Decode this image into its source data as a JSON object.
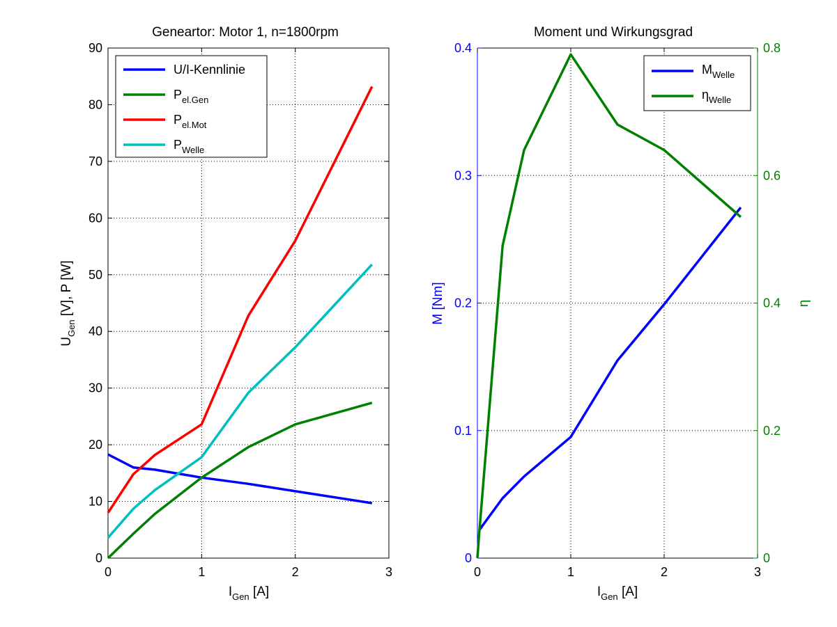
{
  "chart_data": [
    {
      "type": "line",
      "title": "Geneartor: Motor 1, n=1800rpm",
      "xlabel": {
        "main": "I",
        "sub": "Gen",
        "rest": " [A]"
      },
      "ylabel": {
        "main": "U",
        "sub": "Gen",
        "rest": " [V], P [W]"
      },
      "xlim": [
        0,
        3
      ],
      "ylim": [
        0,
        90
      ],
      "xticks": [
        0,
        1,
        2,
        3
      ],
      "yticks": [
        0,
        10,
        20,
        30,
        40,
        50,
        60,
        70,
        80,
        90
      ],
      "grid": true,
      "legend_position": "top-left",
      "series": [
        {
          "name": "U/I-Kennlinie",
          "name_main": "U/I-Kennlinie",
          "name_sub": "",
          "color": "#0000ff",
          "x": [
            0,
            0.27,
            0.5,
            1.0,
            1.5,
            2.0,
            2.82
          ],
          "y": [
            18.3,
            16.0,
            15.6,
            14.2,
            13.1,
            11.8,
            9.7
          ]
        },
        {
          "name": "Pel.Gen",
          "name_main": "P",
          "name_sub": "el.Gen",
          "color": "#008000",
          "x": [
            0,
            0.27,
            0.5,
            1.0,
            1.5,
            2.0,
            2.82
          ],
          "y": [
            0,
            4.3,
            7.8,
            14.2,
            19.6,
            23.6,
            27.4
          ]
        },
        {
          "name": "Pel.Mot",
          "name_main": "P",
          "name_sub": "el.Mot",
          "color": "#ff0000",
          "x": [
            0,
            0.27,
            0.5,
            1.0,
            1.5,
            2.0,
            2.82
          ],
          "y": [
            8.0,
            14.8,
            18.2,
            23.6,
            42.8,
            56.0,
            83.2
          ]
        },
        {
          "name": "PWelle",
          "name_main": "P",
          "name_sub": "Welle",
          "color": "#00bfbf",
          "x": [
            0,
            0.27,
            0.5,
            1.0,
            1.5,
            2.0,
            2.82
          ],
          "y": [
            3.6,
            8.7,
            12.0,
            17.8,
            29.2,
            37.2,
            51.8
          ]
        }
      ]
    },
    {
      "type": "line",
      "title": "Moment und Wirkungsgrad",
      "xlabel": {
        "main": "I",
        "sub": "Gen",
        "rest": " [A]"
      },
      "ylabel": "M [Nm]",
      "ylabel_right": "η",
      "xlim": [
        0,
        3
      ],
      "ylim": [
        0,
        0.4
      ],
      "ylim_right": [
        0,
        0.8
      ],
      "xticks": [
        0,
        1,
        2,
        3
      ],
      "yticks": [
        0,
        0.1,
        0.2,
        0.3,
        0.4
      ],
      "yticks_right": [
        0,
        0.2,
        0.4,
        0.6,
        0.8
      ],
      "grid": true,
      "legend_position": "top-right",
      "left_axis_color": "#0000ff",
      "right_axis_color": "#008000",
      "series": [
        {
          "name": "MWelle",
          "name_main": "M",
          "name_sub": "Welle",
          "color": "#0000ff",
          "axis": "left",
          "x": [
            0.02,
            0.27,
            0.5,
            1.0,
            1.5,
            2.0,
            2.82
          ],
          "y": [
            0.022,
            0.047,
            0.064,
            0.095,
            0.155,
            0.199,
            0.275
          ]
        },
        {
          "name": "ηWelle",
          "name_main": "η",
          "name_sub": "Welle",
          "color": "#008000",
          "axis": "right",
          "x": [
            0,
            0.02,
            0.27,
            0.5,
            1.0,
            1.5,
            2.0,
            2.82
          ],
          "y": [
            0,
            0.04,
            0.49,
            0.64,
            0.79,
            0.68,
            0.64,
            0.535
          ]
        }
      ]
    }
  ]
}
